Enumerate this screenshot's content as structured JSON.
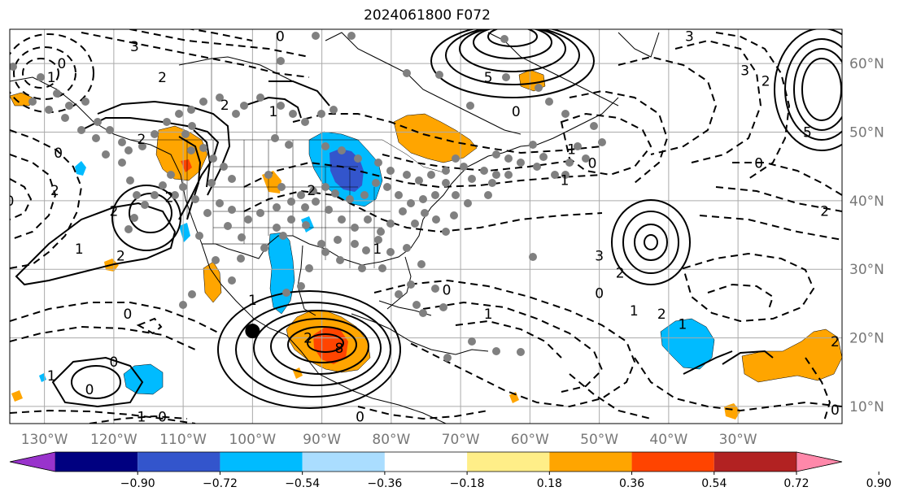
{
  "title": "2024061800 F072",
  "map": {
    "lon_range": [
      -135,
      -15
    ],
    "lat_range": [
      7.5,
      65
    ],
    "lon_ticks": [
      {
        "lon": -130,
        "label": "130°W"
      },
      {
        "lon": -120,
        "label": "120°W"
      },
      {
        "lon": -110,
        "label": "110°W"
      },
      {
        "lon": -100,
        "label": "100°W"
      },
      {
        "lon": -90,
        "label": "90°W"
      },
      {
        "lon": -80,
        "label": "80°W"
      },
      {
        "lon": -70,
        "label": "70°W"
      },
      {
        "lon": -60,
        "label": "60°W"
      },
      {
        "lon": -50,
        "label": "50°W"
      },
      {
        "lon": -40,
        "label": "40°W"
      },
      {
        "lon": -30,
        "label": "30°W"
      }
    ],
    "lat_ticks": [
      {
        "lat": 10,
        "label": "10°N"
      },
      {
        "lat": 20,
        "label": "20°N"
      },
      {
        "lat": 30,
        "label": "30°N"
      },
      {
        "lat": 40,
        "label": "40°N"
      },
      {
        "lat": 50,
        "label": "50°N"
      },
      {
        "lat": 60,
        "label": "60°N"
      }
    ],
    "grid": true,
    "marker": {
      "lon": -100,
      "lat": 21
    },
    "contour_labels": [
      {
        "text": "0",
        "lon": -127.5,
        "lat": 60
      },
      {
        "text": "2",
        "lon": -113,
        "lat": 58
      },
      {
        "text": "1",
        "lon": -129,
        "lat": 58
      },
      {
        "text": "3",
        "lon": -117,
        "lat": 62.5
      },
      {
        "text": "0",
        "lon": -96,
        "lat": 64
      },
      {
        "text": "5",
        "lon": -66,
        "lat": 58
      },
      {
        "text": "3",
        "lon": -37,
        "lat": 64
      },
      {
        "text": "3",
        "lon": -29,
        "lat": 59
      },
      {
        "text": "2",
        "lon": -26,
        "lat": 57.5
      },
      {
        "text": "5",
        "lon": -20,
        "lat": 50
      },
      {
        "text": "0",
        "lon": -62,
        "lat": 53
      },
      {
        "text": "1",
        "lon": -54,
        "lat": 47.5
      },
      {
        "text": "0",
        "lon": -51,
        "lat": 45.5
      },
      {
        "text": "0",
        "lon": -27,
        "lat": 45.5
      },
      {
        "text": "2",
        "lon": -17.5,
        "lat": 38.5
      },
      {
        "text": "1",
        "lon": -55,
        "lat": 43
      },
      {
        "text": "2",
        "lon": -116,
        "lat": 49
      },
      {
        "text": "0",
        "lon": -128,
        "lat": 47
      },
      {
        "text": "0",
        "lon": -135,
        "lat": 40
      },
      {
        "text": "2",
        "lon": -128.5,
        "lat": 41.5
      },
      {
        "text": "2",
        "lon": -120,
        "lat": 38.5
      },
      {
        "text": "1",
        "lon": -125,
        "lat": 33
      },
      {
        "text": "2",
        "lon": -119,
        "lat": 32
      },
      {
        "text": "2",
        "lon": -104,
        "lat": 54
      },
      {
        "text": "1",
        "lon": -97,
        "lat": 53
      },
      {
        "text": "2",
        "lon": -91.5,
        "lat": 41.5
      },
      {
        "text": "1",
        "lon": -82,
        "lat": 33
      },
      {
        "text": "0",
        "lon": -72,
        "lat": 27
      },
      {
        "text": "1",
        "lon": -66,
        "lat": 23.5
      },
      {
        "text": "3",
        "lon": -50,
        "lat": 32
      },
      {
        "text": "2",
        "lon": -47,
        "lat": 29.5
      },
      {
        "text": "0",
        "lon": -50,
        "lat": 26.5
      },
      {
        "text": "1",
        "lon": -45,
        "lat": 24
      },
      {
        "text": "2",
        "lon": -41,
        "lat": 23.5
      },
      {
        "text": "1",
        "lon": -38,
        "lat": 22
      },
      {
        "text": "2",
        "lon": -16,
        "lat": 19.5
      },
      {
        "text": "0",
        "lon": -16,
        "lat": 9.5
      },
      {
        "text": "2",
        "lon": -92,
        "lat": 20
      },
      {
        "text": "8",
        "lon": -87.5,
        "lat": 18.5
      },
      {
        "text": "0",
        "lon": -120,
        "lat": 16.5
      },
      {
        "text": "1",
        "lon": -129,
        "lat": 14.5
      },
      {
        "text": "0",
        "lon": -123.5,
        "lat": 12.5
      },
      {
        "text": "1",
        "lon": -116,
        "lat": 8.5
      },
      {
        "text": "0",
        "lon": -113,
        "lat": 8.5
      },
      {
        "text": "0",
        "lon": -84.5,
        "lat": 8.5
      },
      {
        "text": "2",
        "lon": -112,
        "lat": 40.5
      },
      {
        "text": "0",
        "lon": -118,
        "lat": 23.5
      },
      {
        "text": "1",
        "lon": -100,
        "lat": 25.5
      }
    ]
  },
  "colorbar": {
    "ticks": [
      "−0.90",
      "−0.72",
      "−0.54",
      "−0.36",
      "−0.18",
      "0.18",
      "0.36",
      "0.54",
      "0.72",
      "0.90"
    ],
    "colors": [
      "#9933cc",
      "#000080",
      "#3355cc",
      "#00bbff",
      "#aaddff",
      "#ffffff",
      "#ffee88",
      "#ffa500",
      "#ff4400",
      "#b22222",
      "#ff88aa"
    ]
  }
}
